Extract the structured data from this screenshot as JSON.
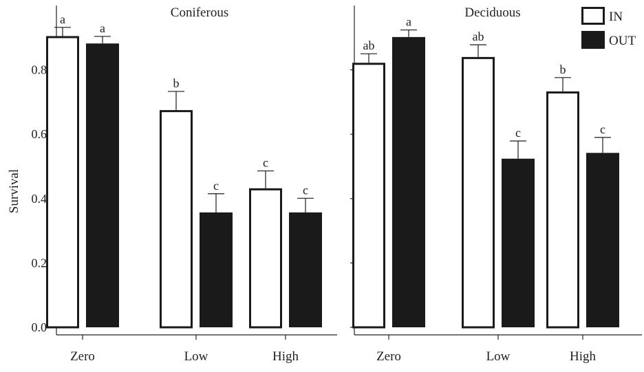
{
  "chart_data": [
    {
      "type": "bar",
      "title": "Coniferous",
      "ylabel": "Survival",
      "xlabel": "",
      "ylim": [
        0,
        1.0
      ],
      "yticks": [
        "0.0",
        "0.2",
        "0.4",
        "0.6",
        "0.8"
      ],
      "categories": [
        "Zero",
        "Low",
        "High"
      ],
      "series": [
        {
          "name": "IN",
          "values": [
            0.905,
            0.675,
            0.432
          ],
          "errors": [
            0.027,
            0.058,
            0.054
          ],
          "letters": [
            "a",
            "b",
            "c"
          ]
        },
        {
          "name": "OUT",
          "values": [
            0.882,
            0.357,
            0.357
          ],
          "errors": [
            0.022,
            0.058,
            0.044
          ],
          "letters": [
            "a",
            "c",
            "c"
          ]
        }
      ]
    },
    {
      "type": "bar",
      "title": "Deciduous",
      "ylabel": "",
      "xlabel": "",
      "ylim": [
        0,
        1.0
      ],
      "categories": [
        "Zero",
        "Low",
        "High"
      ],
      "series": [
        {
          "name": "IN",
          "values": [
            0.822,
            0.84,
            0.733
          ],
          "errors": [
            0.028,
            0.038,
            0.043
          ],
          "letters": [
            "ab",
            "ab",
            "b"
          ]
        },
        {
          "name": "OUT",
          "values": [
            0.902,
            0.524,
            0.542
          ],
          "errors": [
            0.022,
            0.055,
            0.048
          ],
          "letters": [
            "a",
            "c",
            "c"
          ]
        }
      ]
    }
  ],
  "legend": {
    "placement": "top-right",
    "entries": [
      {
        "label": "IN",
        "fill": "#ffffff"
      },
      {
        "label": "OUT",
        "fill": "#1a1a1a"
      }
    ]
  },
  "colors": {
    "in_fill": "#ffffff",
    "out_fill": "#1a1a1a",
    "stroke": "#1a1a1a"
  }
}
